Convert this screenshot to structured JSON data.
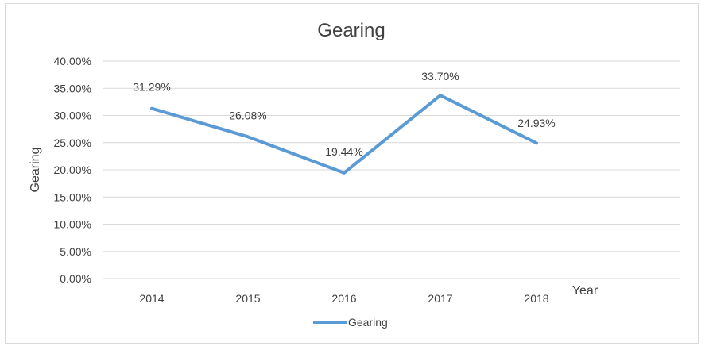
{
  "chart_data": {
    "type": "line",
    "title": "Gearing",
    "xlabel": "Year",
    "ylabel": "Gearing",
    "categories": [
      "2014",
      "2015",
      "2016",
      "2017",
      "2018"
    ],
    "series": [
      {
        "name": "Gearing",
        "values": [
          31.29,
          26.08,
          19.44,
          33.7,
          24.93
        ],
        "labels": [
          "31.29%",
          "26.08%",
          "19.44%",
          "33.70%",
          "24.93%"
        ],
        "color": "#5b9bd5"
      }
    ],
    "ylim": [
      0,
      40
    ],
    "yticks": [
      "0.00%",
      "5.00%",
      "10.00%",
      "15.00%",
      "20.00%",
      "25.00%",
      "30.00%",
      "35.00%",
      "40.00%"
    ],
    "ytick_values": [
      0,
      5,
      10,
      15,
      20,
      25,
      30,
      35,
      40
    ],
    "grid": true,
    "legend_position": "bottom",
    "gridline_color": "#d9d9d9"
  }
}
